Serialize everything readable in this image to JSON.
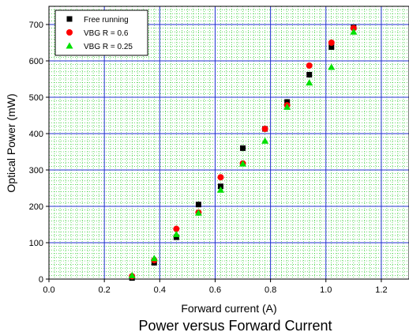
{
  "chart_data": {
    "type": "scatter",
    "title": "Power versus Forward Current",
    "xlabel": "Forward current (A)",
    "ylabel": "Optical Power (mW)",
    "xlim": [
      0,
      1.3
    ],
    "ylim": [
      0,
      750
    ],
    "xticks": [
      "0.0",
      "0.2",
      "0.4",
      "0.6",
      "0.8",
      "1.0",
      "1.2"
    ],
    "yticks": [
      "0",
      "100",
      "200",
      "300",
      "400",
      "500",
      "600",
      "700"
    ],
    "grid": true,
    "legend_position": "top-left",
    "series": [
      {
        "name": "Free running",
        "marker": "square",
        "color": "#000000",
        "x": [
          0.3,
          0.38,
          0.46,
          0.54,
          0.62,
          0.7,
          0.78,
          0.86,
          0.94,
          1.02,
          1.1
        ],
        "y": [
          3,
          45,
          115,
          205,
          255,
          360,
          413,
          487,
          562,
          638,
          692
        ]
      },
      {
        "name": "VBG R = 0.6",
        "marker": "circle",
        "color": "#ff0000",
        "x": [
          0.3,
          0.38,
          0.46,
          0.54,
          0.62,
          0.7,
          0.78,
          0.86,
          0.94,
          1.02,
          1.1
        ],
        "y": [
          8,
          52,
          138,
          183,
          280,
          318,
          413,
          478,
          587,
          650,
          690
        ]
      },
      {
        "name": "VBG R = 0.25",
        "marker": "triangle",
        "color": "#00e000",
        "x": [
          0.3,
          0.38,
          0.46,
          0.54,
          0.62,
          0.7,
          0.78,
          0.86,
          0.94,
          1.02,
          1.1
        ],
        "y": [
          10,
          57,
          123,
          182,
          245,
          317,
          380,
          473,
          540,
          583,
          680
        ]
      }
    ]
  }
}
